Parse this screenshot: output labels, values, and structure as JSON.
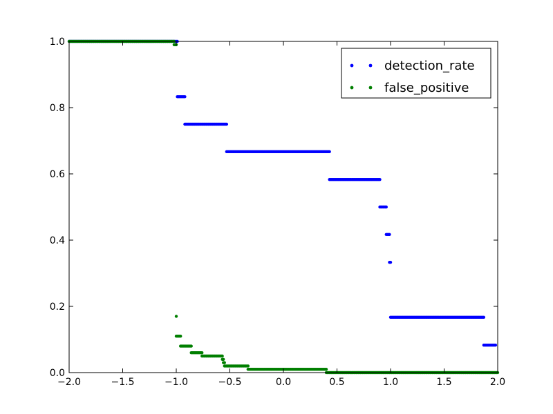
{
  "chart_data": {
    "type": "scatter",
    "title": "",
    "xlabel": "",
    "ylabel": "",
    "xlim": [
      -2.0,
      2.0
    ],
    "ylim": [
      0.0,
      1.0
    ],
    "x_ticks": [
      "−2.0",
      "−1.5",
      "−1.0",
      "−0.5",
      "0.0",
      "0.5",
      "1.0",
      "1.5",
      "2.0"
    ],
    "y_ticks": [
      "0.0",
      "0.2",
      "0.4",
      "0.6",
      "0.8",
      "1.0"
    ],
    "grid": false,
    "legend": "top-right",
    "series": [
      {
        "name": "detection_rate",
        "color": "#0000ff",
        "segments": [
          {
            "x_start": -2.0,
            "x_end": -0.99,
            "y": 1.0
          },
          {
            "x_start": -0.99,
            "x_end": -0.92,
            "y": 0.833
          },
          {
            "x_start": -0.92,
            "x_end": -0.53,
            "y": 0.75
          },
          {
            "x_start": -0.53,
            "x_end": 0.43,
            "y": 0.667
          },
          {
            "x_start": 0.43,
            "x_end": 0.9,
            "y": 0.583
          },
          {
            "x_start": 0.9,
            "x_end": 0.96,
            "y": 0.5
          },
          {
            "x_start": 0.96,
            "x_end": 0.99,
            "y": 0.417
          },
          {
            "x_start": 0.99,
            "x_end": 1.0,
            "y": 0.333
          },
          {
            "x_start": 1.0,
            "x_end": 1.87,
            "y": 0.167
          },
          {
            "x_start": 1.87,
            "x_end": 1.98,
            "y": 0.083
          }
        ]
      },
      {
        "name": "false_positive",
        "color": "#007f00",
        "segments": [
          {
            "x_start": -2.0,
            "x_end": -1.02,
            "y": 1.0
          },
          {
            "x_start": -1.02,
            "x_end": -1.0,
            "y": 0.99
          },
          {
            "x_start": -1.0,
            "x_end": -1.0,
            "y": 0.17
          },
          {
            "x_start": -1.0,
            "x_end": -0.96,
            "y": 0.11
          },
          {
            "x_start": -0.96,
            "x_end": -0.86,
            "y": 0.08
          },
          {
            "x_start": -0.86,
            "x_end": -0.76,
            "y": 0.06
          },
          {
            "x_start": -0.76,
            "x_end": -0.57,
            "y": 0.05
          },
          {
            "x_start": -0.57,
            "x_end": -0.56,
            "y": 0.04
          },
          {
            "x_start": -0.56,
            "x_end": -0.55,
            "y": 0.03
          },
          {
            "x_start": -0.55,
            "x_end": -0.33,
            "y": 0.02
          },
          {
            "x_start": -0.33,
            "x_end": 0.4,
            "y": 0.01
          },
          {
            "x_start": 0.4,
            "x_end": 2.0,
            "y": 0.0
          }
        ]
      }
    ]
  }
}
